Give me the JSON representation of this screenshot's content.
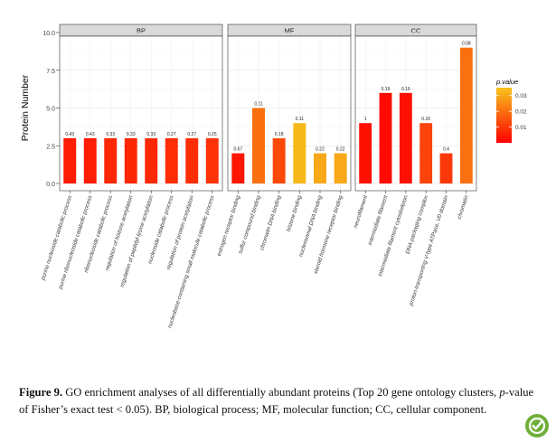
{
  "chart_data": {
    "type": "bar",
    "ylabel": "Protein Number",
    "ylim": [
      0,
      10
    ],
    "yticks": [
      0.0,
      2.5,
      5.0,
      7.5,
      10.0
    ],
    "ytick_labels": [
      "0.0",
      "2.5",
      "5.0",
      "7.5",
      "10.0"
    ],
    "grid": true,
    "legend": {
      "title": "p.value",
      "placement": "right",
      "ticks": [
        0.01,
        0.02,
        0.03
      ],
      "tick_labels": [
        "0.01",
        "0.02",
        "0.03"
      ],
      "range": [
        0.0,
        0.035
      ],
      "colors": [
        "#ff0000",
        "#f7c41c"
      ]
    },
    "facets": [
      {
        "name": "BP",
        "bars": [
          {
            "category": "purine nucleoside catabolic process",
            "value": 3,
            "label": "0.43",
            "p": 0.005
          },
          {
            "category": "purine ribonucleoside catabolic process",
            "value": 3,
            "label": "0.43",
            "p": 0.005
          },
          {
            "category": "ribonucleoside catabolic process",
            "value": 3,
            "label": "0.33",
            "p": 0.007
          },
          {
            "category": "regulation of histone acetylation",
            "value": 3,
            "label": "0.33",
            "p": 0.007
          },
          {
            "category": "regulation of peptidyl-lysine acetylation",
            "value": 3,
            "label": "0.33",
            "p": 0.007
          },
          {
            "category": "nucleoside catabolic process",
            "value": 3,
            "label": "0.27",
            "p": 0.008
          },
          {
            "category": "regulation of protein acetylation",
            "value": 3,
            "label": "0.27",
            "p": 0.008
          },
          {
            "category": "nucleobase-containing small molecule catabolic process",
            "value": 3,
            "label": "0.25",
            "p": 0.009
          }
        ]
      },
      {
        "name": "MF",
        "bars": [
          {
            "category": "estrogen receptor binding",
            "value": 2,
            "label": "0.67",
            "p": 0.004
          },
          {
            "category": "sulfur compound binding",
            "value": 5,
            "label": "0.11",
            "p": 0.02
          },
          {
            "category": "chromatin DNA binding",
            "value": 3,
            "label": "0.18",
            "p": 0.013
          },
          {
            "category": "histone binding",
            "value": 4,
            "label": "0.11",
            "p": 0.033
          },
          {
            "category": "nucleosomal DNA binding",
            "value": 2,
            "label": "0.22",
            "p": 0.03
          },
          {
            "category": "steroid hormone receptor binding",
            "value": 2,
            "label": "0.22",
            "p": 0.03
          }
        ]
      },
      {
        "name": "CC",
        "bars": [
          {
            "category": "neurofilament",
            "value": 4,
            "label": "1",
            "p": 0.003
          },
          {
            "category": "intermediate filament",
            "value": 6,
            "label": "0.19",
            "p": 0.002
          },
          {
            "category": "intermediate filament cytoskeleton",
            "value": 6,
            "label": "0.16",
            "p": 0.003
          },
          {
            "category": "DNA packaging complex",
            "value": 4,
            "label": "0.16",
            "p": 0.012
          },
          {
            "category": "proton-transporting V-type ATPase, V0 domain",
            "value": 2,
            "label": "0.4",
            "p": 0.01
          },
          {
            "category": "chromatin",
            "value": 9,
            "label": "0.08",
            "p": 0.02
          }
        ]
      }
    ]
  },
  "caption": {
    "figure_label": "Figure 9.",
    "text_1": " GO enrichment analyses of all differentially abundant proteins (Top 20 gene ontology clusters, ",
    "italic_p": "p",
    "text_2": "-value of Fisher’s exact test < 0.05). BP, biological process; MF, molecular function; CC, cellular component."
  },
  "badge": {
    "icon": "check-logo-icon",
    "color": "#6fae3a"
  }
}
